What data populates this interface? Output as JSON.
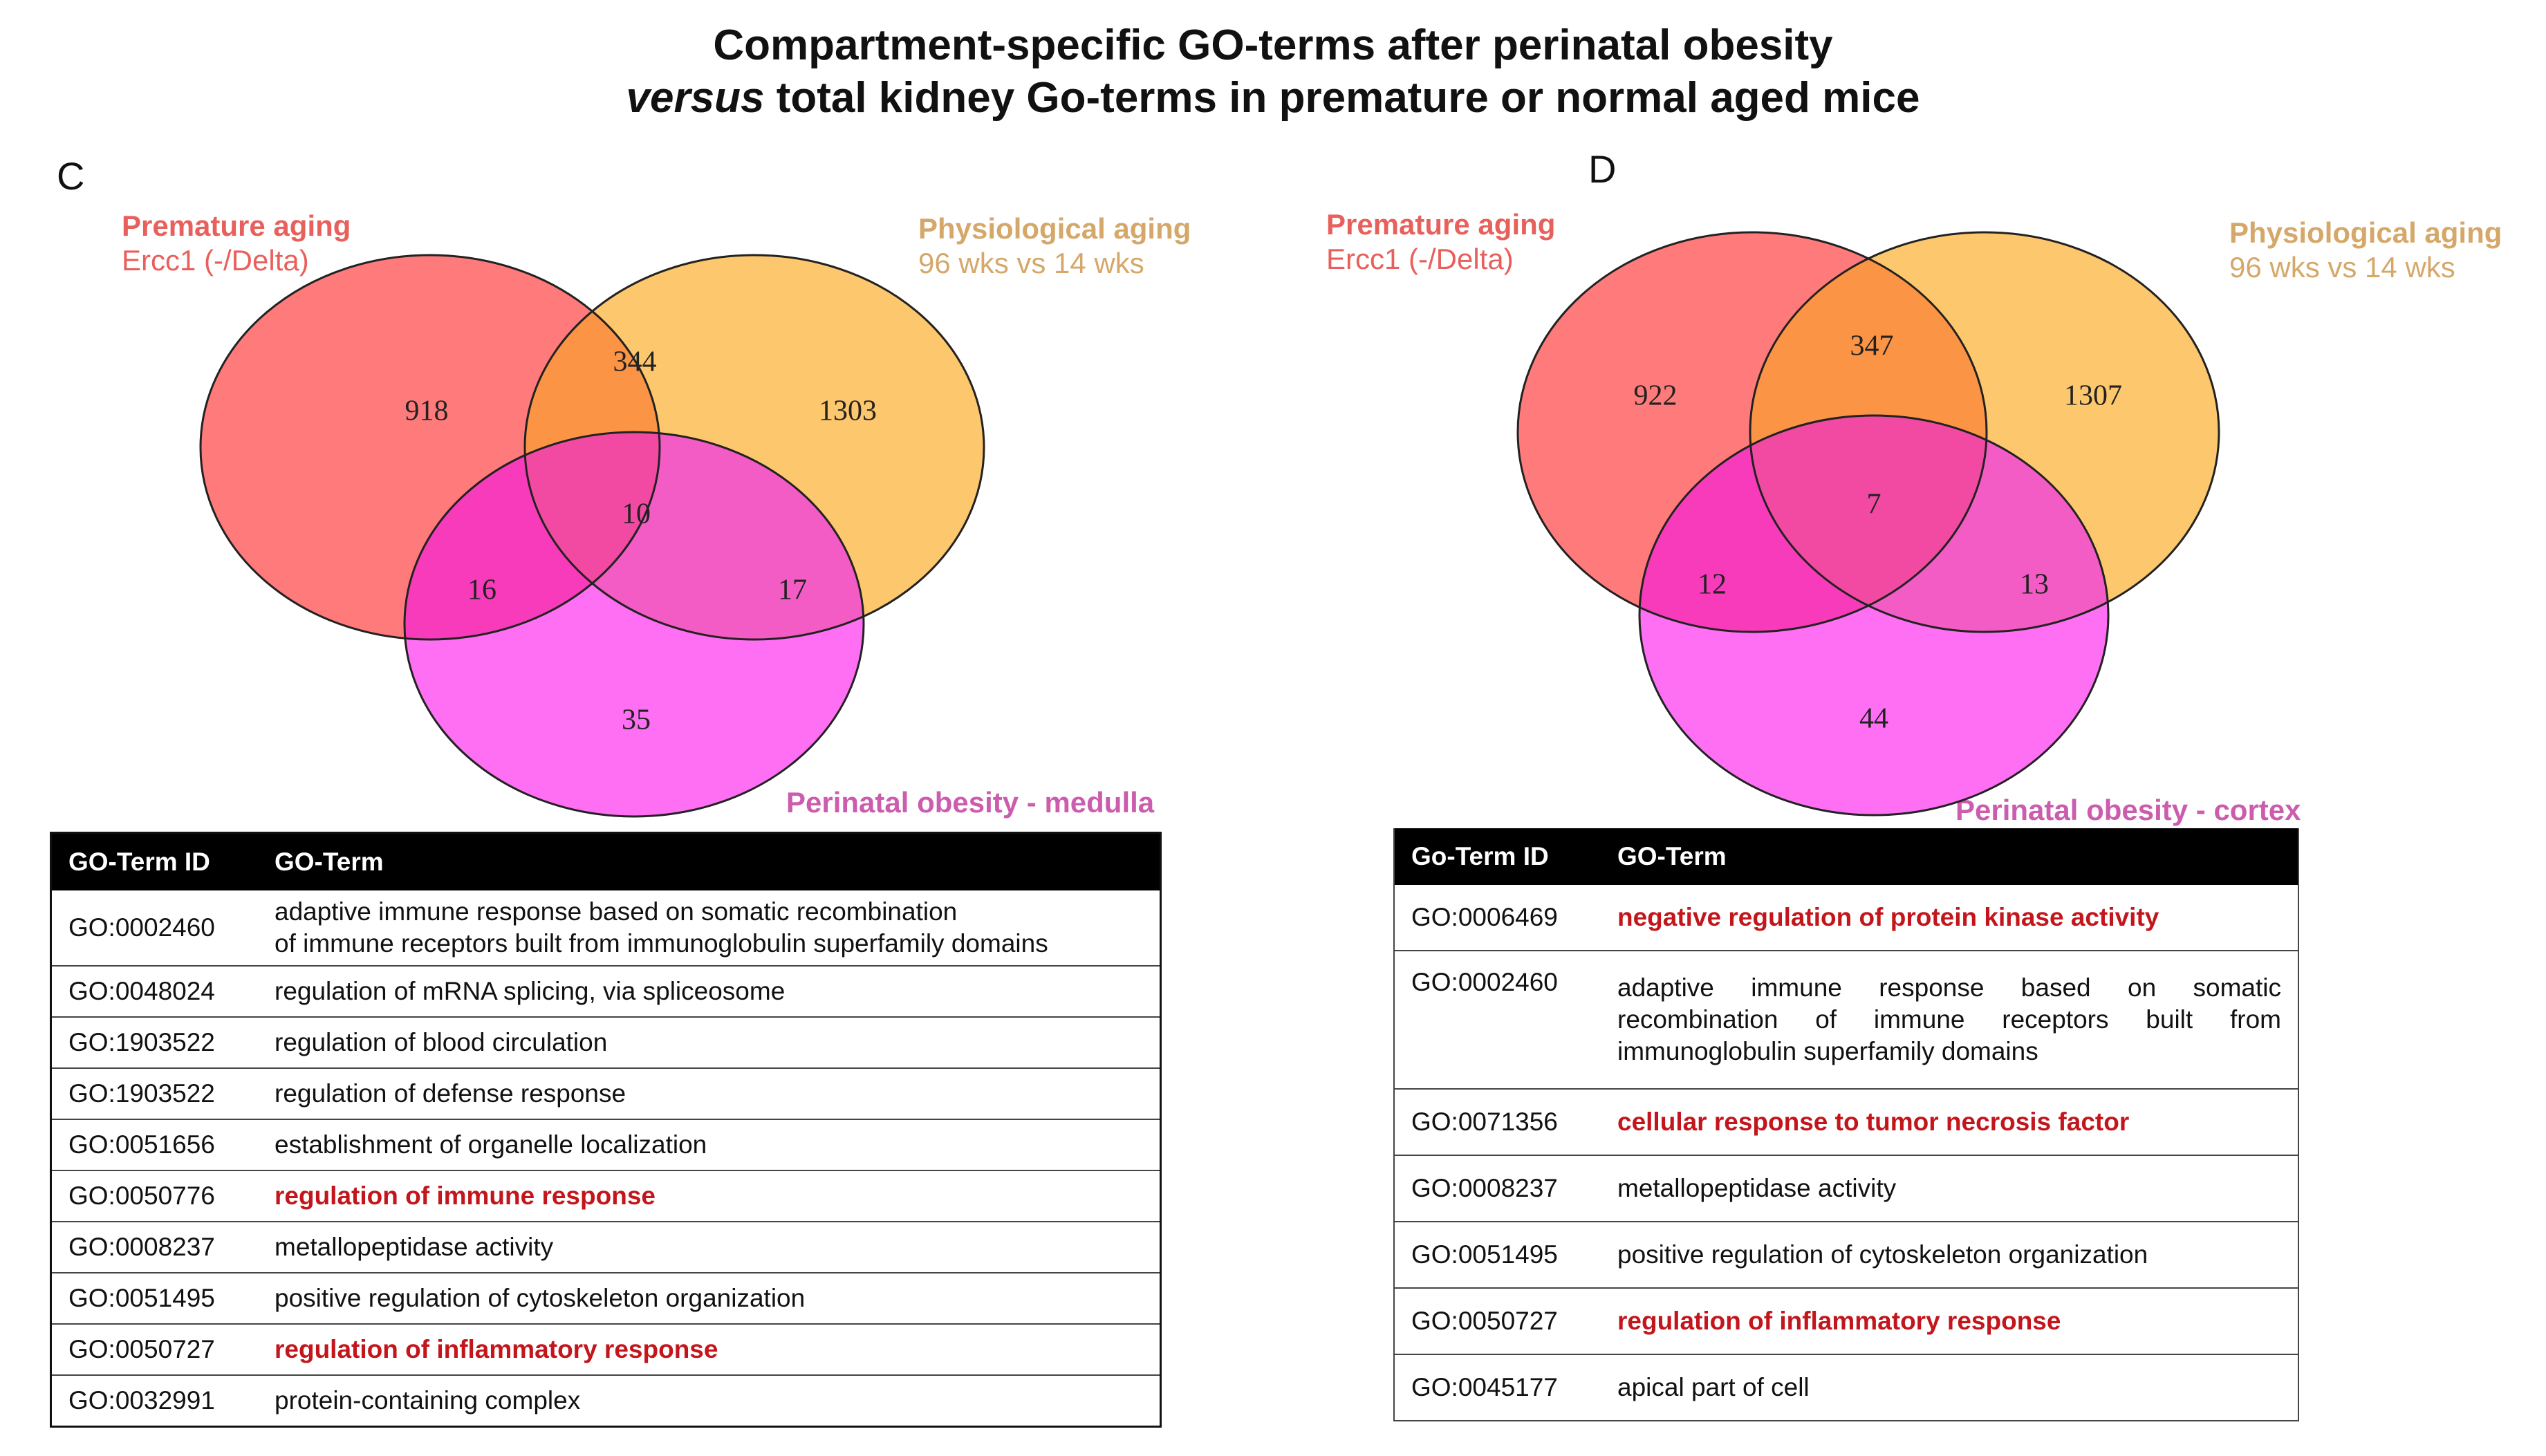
{
  "title": {
    "line1": "Compartment-specific GO-terms after perinatal obesity",
    "line2_italic": "versus",
    "line2_rest": " total kidney Go-terms in premature or normal aged mice"
  },
  "panels": [
    {
      "letter": "C",
      "premature": {
        "name": "Premature aging",
        "sub": "Ercc1 (-/Delta)"
      },
      "physiological": {
        "name": "Physiological aging",
        "sub": "96 wks vs 14 wks"
      },
      "obesity_label": "Perinatal obesity - medulla",
      "venn": {
        "premature_only": "918",
        "prem_phys": "344",
        "physiological_only": "1303",
        "all_three": "10",
        "prem_obes": "16",
        "phys_obes": "17",
        "obesity_only": "35"
      },
      "table": {
        "headers": [
          "GO-Term ID",
          "GO-Term"
        ],
        "rows": [
          {
            "id": "GO:0002460",
            "term": "adaptive immune response based on somatic recombination",
            "term2": "of immune receptors built from immunoglobulin superfamily domains",
            "highlight": false
          },
          {
            "id": "GO:0048024",
            "term": "regulation of mRNA splicing, via spliceosome",
            "highlight": false
          },
          {
            "id": "GO:1903522",
            "term": "regulation of blood circulation",
            "highlight": false
          },
          {
            "id": "GO:1903522",
            "term": "regulation of defense response",
            "highlight": false
          },
          {
            "id": "GO:0051656",
            "term": "establishment of organelle localization",
            "highlight": false
          },
          {
            "id": "GO:0050776",
            "term": "regulation of immune response",
            "highlight": true
          },
          {
            "id": "GO:0008237",
            "term": "metallopeptidase activity",
            "highlight": false
          },
          {
            "id": "GO:0051495",
            "term": "positive regulation of cytoskeleton organization",
            "highlight": false
          },
          {
            "id": "GO:0050727",
            "term": "regulation of inflammatory response",
            "highlight": true
          },
          {
            "id": "GO:0032991",
            "term": "protein-containing complex",
            "highlight": false
          }
        ]
      }
    },
    {
      "letter": "D",
      "premature": {
        "name": "Premature aging",
        "sub": "Ercc1 (-/Delta)"
      },
      "physiological": {
        "name": "Physiological aging",
        "sub": "96 wks vs 14 wks"
      },
      "obesity_label": "Perinatal obesity - cortex",
      "venn": {
        "premature_only": "922",
        "prem_phys": "347",
        "physiological_only": "1307",
        "all_three": "7",
        "prem_obes": "12",
        "phys_obes": "13",
        "obesity_only": "44"
      },
      "table": {
        "headers": [
          "Go-Term ID",
          "GO-Term"
        ],
        "rows": [
          {
            "id": "GO:0006469",
            "term": "negative regulation of protein kinase activity",
            "highlight": true
          },
          {
            "id": "GO:0002460",
            "term": "adaptive immune response based on somatic recombination of immune receptors built from immunoglobulin superfamily domains",
            "highlight": false
          },
          {
            "id": "GO:0071356",
            "term": "cellular response to tumor necrosis factor",
            "highlight": true
          },
          {
            "id": "GO:0008237",
            "term": "metallopeptidase activity",
            "highlight": false
          },
          {
            "id": "GO:0051495",
            "term": "positive regulation of cytoskeleton organization",
            "highlight": false
          },
          {
            "id": "GO:0050727",
            "term": "regulation of inflammatory response",
            "highlight": true
          },
          {
            "id": "GO:0045177",
            "term": "apical part of cell",
            "highlight": false
          }
        ]
      }
    }
  ],
  "colors": {
    "premature": "#ff7b7b",
    "physiological": "#fdc76d",
    "obesity": "#ff6ff3",
    "prem_phys": "#fc9445",
    "prem_obes": "#f83bbb",
    "phys_obes": "#f45cc5",
    "all_three": "#f24aa3",
    "highlight_text": "#c3161c"
  }
}
